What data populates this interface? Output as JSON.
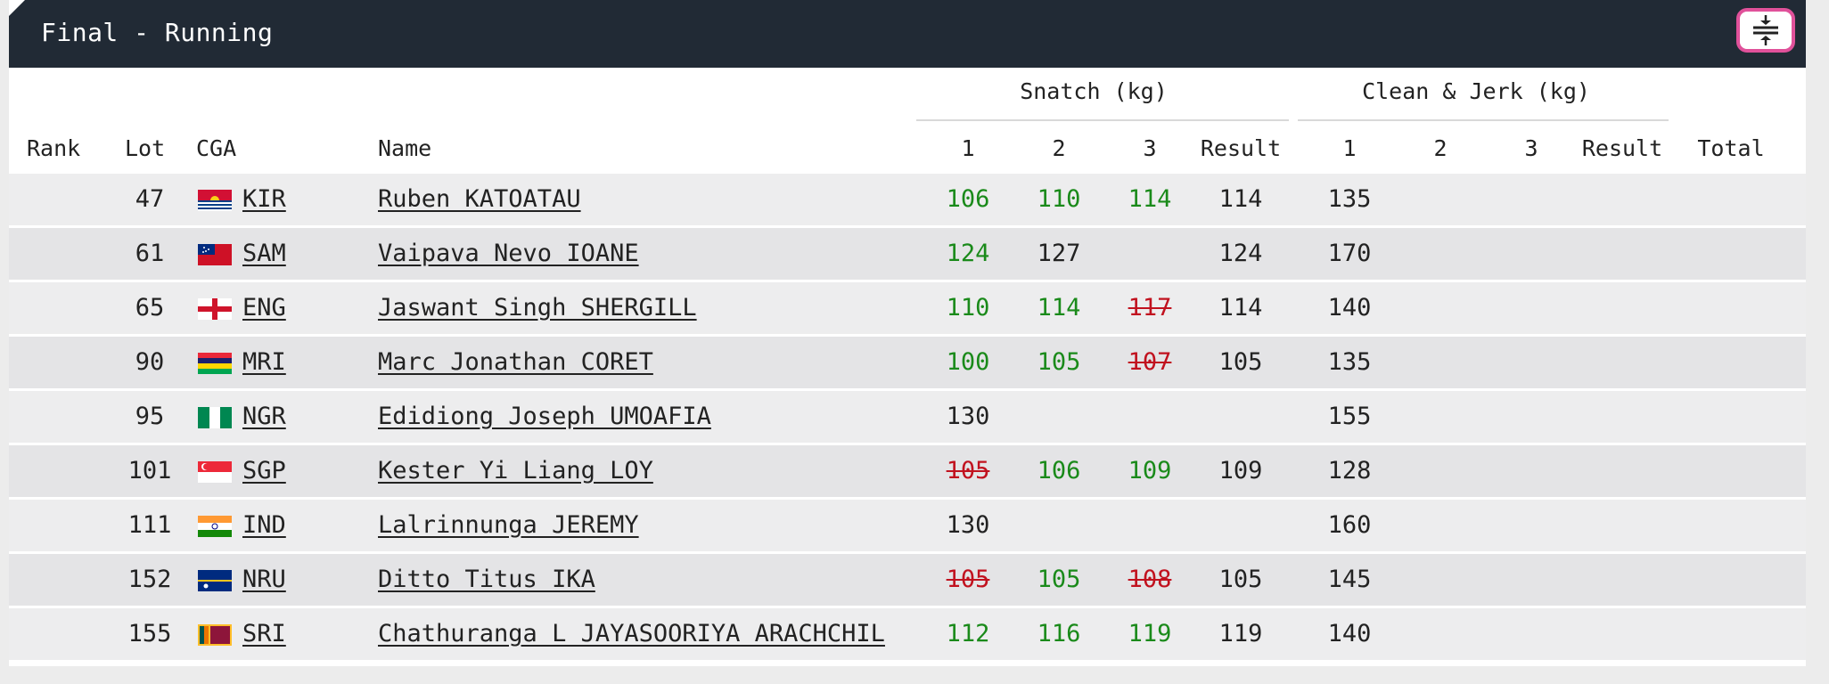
{
  "header": {
    "title": "Final - Running"
  },
  "groups": {
    "snatch": "Snatch (kg)",
    "cj": "Clean & Jerk (kg)"
  },
  "columns": {
    "rank": "Rank",
    "lot": "Lot",
    "cga": "CGA",
    "name": "Name",
    "s1": "1",
    "s2": "2",
    "s3": "3",
    "sres": "Result",
    "c1": "1",
    "c2": "2",
    "c3": "3",
    "cres": "Result",
    "total": "Total"
  },
  "rows": [
    {
      "rank": "",
      "lot": "47",
      "cga": "KIR",
      "name": "Ruben KATOATAU",
      "s1": "106",
      "s1s": "good",
      "s2": "110",
      "s2s": "good",
      "s3": "114",
      "s3s": "good",
      "sres": "114",
      "c1": "135",
      "c2": "",
      "c3": "",
      "cres": "",
      "total": ""
    },
    {
      "rank": "",
      "lot": "61",
      "cga": "SAM",
      "name": "Vaipava Nevo IOANE",
      "s1": "124",
      "s1s": "good",
      "s2": "127",
      "s2s": "plain",
      "s3": "",
      "s3s": "plain",
      "sres": "124",
      "c1": "170",
      "c2": "",
      "c3": "",
      "cres": "",
      "total": ""
    },
    {
      "rank": "",
      "lot": "65",
      "cga": "ENG",
      "name": "Jaswant Singh SHERGILL",
      "s1": "110",
      "s1s": "good",
      "s2": "114",
      "s2s": "good",
      "s3": "117",
      "s3s": "fail",
      "sres": "114",
      "c1": "140",
      "c2": "",
      "c3": "",
      "cres": "",
      "total": ""
    },
    {
      "rank": "",
      "lot": "90",
      "cga": "MRI",
      "name": "Marc Jonathan CORET",
      "s1": "100",
      "s1s": "good",
      "s2": "105",
      "s2s": "good",
      "s3": "107",
      "s3s": "fail",
      "sres": "105",
      "c1": "135",
      "c2": "",
      "c3": "",
      "cres": "",
      "total": ""
    },
    {
      "rank": "",
      "lot": "95",
      "cga": "NGR",
      "name": "Edidiong Joseph UMOAFIA",
      "s1": "130",
      "s1s": "plain",
      "s2": "",
      "s2s": "plain",
      "s3": "",
      "s3s": "plain",
      "sres": "",
      "c1": "155",
      "c2": "",
      "c3": "",
      "cres": "",
      "total": ""
    },
    {
      "rank": "",
      "lot": "101",
      "cga": "SGP",
      "name": "Kester Yi Liang LOY",
      "s1": "105",
      "s1s": "fail",
      "s2": "106",
      "s2s": "good",
      "s3": "109",
      "s3s": "good",
      "sres": "109",
      "c1": "128",
      "c2": "",
      "c3": "",
      "cres": "",
      "total": ""
    },
    {
      "rank": "",
      "lot": "111",
      "cga": "IND",
      "name": "Lalrinnunga JEREMY",
      "s1": "130",
      "s1s": "plain",
      "s2": "",
      "s2s": "plain",
      "s3": "",
      "s3s": "plain",
      "sres": "",
      "c1": "160",
      "c2": "",
      "c3": "",
      "cres": "",
      "total": ""
    },
    {
      "rank": "",
      "lot": "152",
      "cga": "NRU",
      "name": "Ditto Titus IKA",
      "s1": "105",
      "s1s": "fail",
      "s2": "105",
      "s2s": "good",
      "s3": "108",
      "s3s": "fail",
      "sres": "105",
      "c1": "145",
      "c2": "",
      "c3": "",
      "cres": "",
      "total": ""
    },
    {
      "rank": "",
      "lot": "155",
      "cga": "SRI",
      "name": "Chathuranga L JAYASOORIYA ARACHCHIL",
      "s1": "112",
      "s1s": "good",
      "s2": "116",
      "s2s": "good",
      "s3": "119",
      "s3s": "good",
      "sres": "119",
      "c1": "140",
      "c2": "",
      "c3": "",
      "cres": "",
      "total": ""
    }
  ],
  "colors": {
    "header_bg": "#212a35",
    "good": "#1a8a1a",
    "fail": "#c1121f",
    "button_border": "#e0519a"
  },
  "icons": {
    "collapse": "collapse-rows-icon"
  }
}
